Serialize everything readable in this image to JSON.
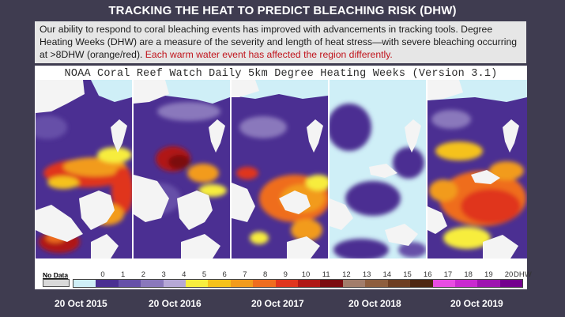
{
  "header": {
    "title": "TRACKING THE HEAT TO PREDICT BLEACHING RISK (DHW)",
    "intro_text": "Our ability to respond to coral bleaching events has improved with advancements in tracking tools. Degree Heating Weeks (DHW) are a measure of the severity and length of heat stress—with severe bleaching occurring at >8DHW (orange/red). ",
    "intro_highlight": "Each warm water event has affected the region differently.",
    "highlight_color": "#c0141c"
  },
  "figure": {
    "title": "NOAA Coral Reef Watch Daily 5km Degree Heating Weeks (Version 3.1)",
    "panels": [
      {
        "date": "20 Oct 2015",
        "map": "dhw-map-2015"
      },
      {
        "date": "20 Oct 2016",
        "map": "dhw-map-2016"
      },
      {
        "date": "20 Oct 2017",
        "map": "dhw-map-2017"
      },
      {
        "date": "20 Oct 2018",
        "map": "dhw-map-2018"
      },
      {
        "date": "20 Oct 2019",
        "map": "dhw-map-2019"
      }
    ],
    "colorbar": {
      "nodata_label": "No Data",
      "nodata_color": "#d9d9d9",
      "tick_labels": [
        "0",
        "1",
        "2",
        "3",
        "4",
        "5",
        "6",
        "7",
        "8",
        "9",
        "10",
        "11",
        "12",
        "13",
        "14",
        "15",
        "16",
        "17",
        "18",
        "19",
        "20"
      ],
      "unit": "DHW",
      "colors": [
        "#cfeff7",
        "#4b2f92",
        "#6650a8",
        "#8a78bc",
        "#b6a8d6",
        "#f7ed3e",
        "#f5c21b",
        "#f29b1d",
        "#ef6d1f",
        "#e0351e",
        "#b01816",
        "#7c0c10",
        "#a27d6b",
        "#8e5e3e",
        "#6e3e22",
        "#4e2611",
        "#e84de3",
        "#c92ad0",
        "#9e14b0",
        "#74008e"
      ]
    }
  },
  "footer": {
    "dates": [
      "20 Oct 2015",
      "20 Oct 2016",
      "20 Oct 2017",
      "20 Oct 2018",
      "20 Oct 2019"
    ]
  }
}
